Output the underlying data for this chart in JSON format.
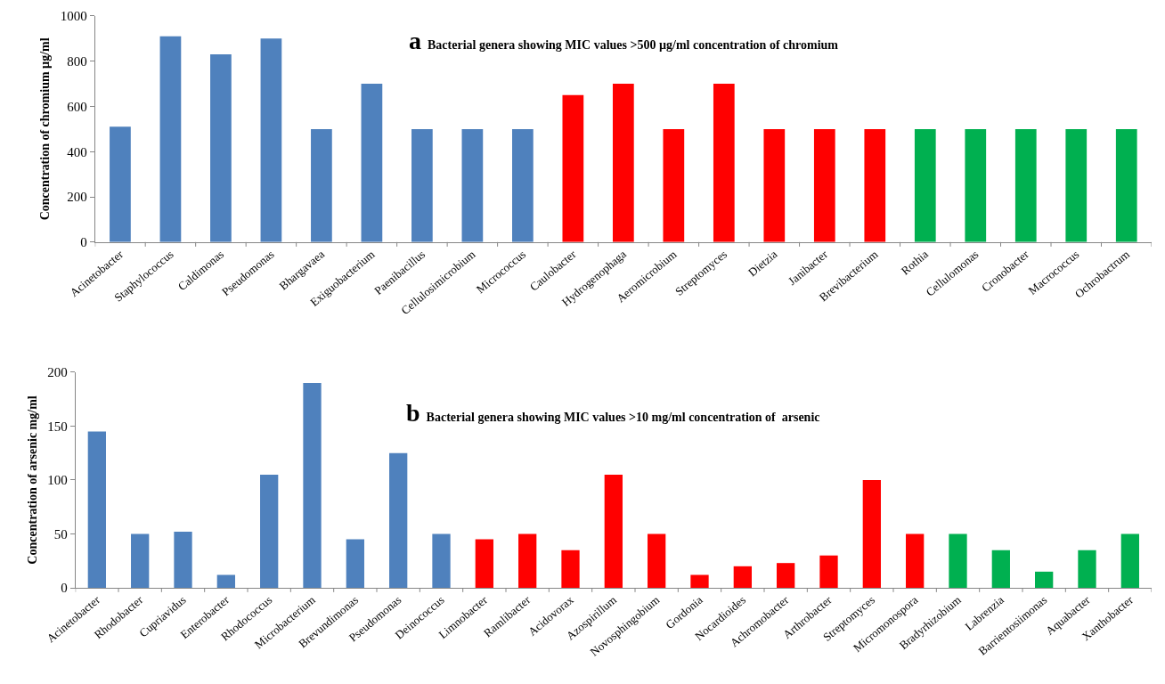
{
  "chart_data": [
    {
      "type": "bar",
      "title": "a Bacterial genera showing MIC values >500 µg/ml concentration of chromium",
      "ylabel": "Concentration of chromium µg/ml",
      "categories": [
        "Acinetobacter",
        "Staphylococcus",
        "Caldimonas",
        "Pseudomonas",
        "Bhargavaea",
        "Exiguobacterium",
        "Paenibacillus",
        "Cellulosimicrobium",
        "Micrococcus",
        "Caulobacter",
        "Hydrogenophaga",
        "Aeromicrobium",
        "Streptomyces",
        "Dietzia",
        "Janibacter",
        "Brevibacterium",
        "Rothia",
        "Cellulomonas",
        "Cronobacter",
        "Macrococcus",
        "Ochrobactrum"
      ],
      "values": [
        510,
        910,
        830,
        900,
        500,
        700,
        500,
        500,
        500,
        650,
        700,
        500,
        700,
        500,
        500,
        500,
        500,
        500,
        500,
        500,
        500
      ],
      "colors": [
        "#4f81bd",
        "#4f81bd",
        "#4f81bd",
        "#4f81bd",
        "#4f81bd",
        "#4f81bd",
        "#4f81bd",
        "#4f81bd",
        "#4f81bd",
        "#ff0000",
        "#ff0000",
        "#ff0000",
        "#ff0000",
        "#ff0000",
        "#ff0000",
        "#ff0000",
        "#00b050",
        "#00b050",
        "#00b050",
        "#00b050",
        "#00b050"
      ],
      "ylim": [
        0,
        1000
      ],
      "yticks": [
        0,
        200,
        400,
        600,
        800,
        1000
      ]
    },
    {
      "type": "bar",
      "title": "b Bacterial genera showing MIC values >10 mg/ml concentration of  arsenic",
      "ylabel": "Concentration of arsenic mg/ml",
      "categories": [
        "Acinetobacter",
        "Rhodobacter",
        "Cupriavidus",
        "Enterobacter",
        "Rhodococcus",
        "Microbacterium",
        "Brevundimonas",
        "Pseudomonas",
        "Deinococcus",
        "Limnobacter",
        "Ramlibacter",
        "Acidovorax",
        "Azospirillum",
        "Novosphingobium",
        "Gordonia",
        "Nocardioides",
        "Achromobacter",
        "Arthrobacter",
        "Streptomyces",
        "Micromonospora",
        "Bradyrhizobium",
        "Labrenzia",
        "Barrientosiimonas",
        "Aquabacter",
        "Xanthobacter"
      ],
      "values": [
        145,
        50,
        52,
        12,
        105,
        190,
        45,
        125,
        50,
        45,
        50,
        35,
        105,
        50,
        12,
        20,
        23,
        30,
        100,
        50,
        50,
        35,
        15,
        35,
        50
      ],
      "colors": [
        "#4f81bd",
        "#4f81bd",
        "#4f81bd",
        "#4f81bd",
        "#4f81bd",
        "#4f81bd",
        "#4f81bd",
        "#4f81bd",
        "#4f81bd",
        "#ff0000",
        "#ff0000",
        "#ff0000",
        "#ff0000",
        "#ff0000",
        "#ff0000",
        "#ff0000",
        "#ff0000",
        "#ff0000",
        "#ff0000",
        "#ff0000",
        "#00b050",
        "#00b050",
        "#00b050",
        "#00b050",
        "#00b050"
      ],
      "ylim": [
        0,
        200
      ],
      "yticks": [
        0,
        50,
        100,
        150,
        200
      ]
    }
  ]
}
